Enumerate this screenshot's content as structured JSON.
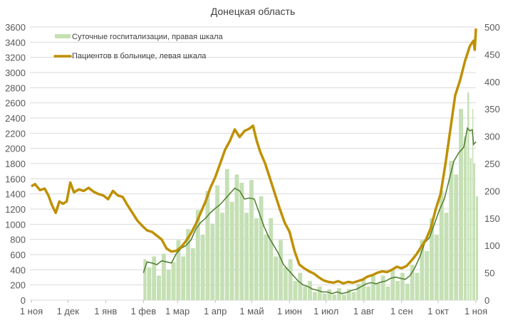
{
  "chart_data": {
    "type": "bar+line",
    "title": "Донецкая область",
    "x_tick_labels": [
      "1 ноя",
      "1 дек",
      "1 янв",
      "1 фев",
      "1 мар",
      "1 апр",
      "1 май",
      "1 июн",
      "1 июл",
      "1 авг",
      "1 сен",
      "1 окт",
      "1 ноя"
    ],
    "x_tick_dates": [
      "2020-11-01",
      "2020-12-01",
      "2021-01-01",
      "2021-02-01",
      "2021-03-01",
      "2021-04-01",
      "2021-05-01",
      "2021-06-01",
      "2021-07-01",
      "2021-08-01",
      "2021-09-01",
      "2021-10-01",
      "2021-11-01"
    ],
    "xlim": [
      "2020-11-01",
      "2021-11-01"
    ],
    "y_left": {
      "lim": [
        0,
        3600
      ],
      "ticks": [
        0,
        200,
        400,
        600,
        800,
        1000,
        1200,
        1400,
        1600,
        1800,
        2000,
        2200,
        2400,
        2600,
        2800,
        3000,
        3200,
        3400,
        3600
      ]
    },
    "y_right": {
      "lim": [
        0,
        500
      ],
      "ticks": [
        0,
        50,
        100,
        150,
        200,
        250,
        300,
        350,
        400,
        450,
        500
      ]
    },
    "grid": "horizontal",
    "legend_placement": "top-left",
    "colors": {
      "bars": "#c5e0b4",
      "patients": "#bf9000",
      "average": "#548235",
      "grid": "#d9d9d9"
    },
    "series": [
      {
        "name": "Суточные госпитализации, правая шкала",
        "kind": "bar",
        "axis": "right",
        "x": [
          "2021-02-01",
          "2021-02-04",
          "2021-02-08",
          "2021-02-12",
          "2021-02-16",
          "2021-02-20",
          "2021-02-24",
          "2021-02-28",
          "2021-03-04",
          "2021-03-08",
          "2021-03-12",
          "2021-03-16",
          "2021-03-20",
          "2021-03-24",
          "2021-03-28",
          "2021-04-01",
          "2021-04-05",
          "2021-04-09",
          "2021-04-13",
          "2021-04-17",
          "2021-04-21",
          "2021-04-25",
          "2021-04-29",
          "2021-05-03",
          "2021-05-07",
          "2021-05-11",
          "2021-05-15",
          "2021-05-19",
          "2021-05-23",
          "2021-05-27",
          "2021-05-31",
          "2021-06-04",
          "2021-06-08",
          "2021-06-12",
          "2021-06-16",
          "2021-06-20",
          "2021-06-24",
          "2021-06-28",
          "2021-07-02",
          "2021-07-06",
          "2021-07-10",
          "2021-07-14",
          "2021-07-18",
          "2021-07-22",
          "2021-07-26",
          "2021-07-30",
          "2021-08-03",
          "2021-08-07",
          "2021-08-11",
          "2021-08-15",
          "2021-08-19",
          "2021-08-23",
          "2021-08-27",
          "2021-08-31",
          "2021-09-04",
          "2021-09-08",
          "2021-09-12",
          "2021-09-16",
          "2021-09-20",
          "2021-09-24",
          "2021-09-28",
          "2021-10-02",
          "2021-10-06",
          "2021-10-10",
          "2021-10-14",
          "2021-10-18",
          "2021-10-22",
          "2021-10-25",
          "2021-10-27",
          "2021-10-29",
          "2021-10-30",
          "2021-11-01"
        ],
        "values": [
          75,
          60,
          80,
          45,
          85,
          55,
          70,
          110,
          80,
          130,
          95,
          165,
          120,
          200,
          140,
          210,
          160,
          240,
          180,
          230,
          215,
          160,
          220,
          150,
          190,
          120,
          150,
          80,
          110,
          60,
          75,
          35,
          50,
          25,
          35,
          15,
          25,
          12,
          20,
          10,
          22,
          10,
          20,
          15,
          30,
          40,
          25,
          45,
          30,
          45,
          25,
          55,
          35,
          50,
          30,
          65,
          50,
          110,
          90,
          150,
          120,
          200,
          160,
          255,
          230,
          350,
          300,
          380,
          260,
          350,
          250,
          190
        ]
      },
      {
        "name": "",
        "kind": "line",
        "axis": "right",
        "x": [
          "2021-02-01",
          "2021-02-04",
          "2021-02-08",
          "2021-02-12",
          "2021-02-16",
          "2021-02-20",
          "2021-02-24",
          "2021-02-28",
          "2021-03-04",
          "2021-03-08",
          "2021-03-12",
          "2021-03-16",
          "2021-03-20",
          "2021-03-24",
          "2021-03-28",
          "2021-04-01",
          "2021-04-05",
          "2021-04-09",
          "2021-04-13",
          "2021-04-17",
          "2021-04-21",
          "2021-04-25",
          "2021-04-29",
          "2021-05-03",
          "2021-05-07",
          "2021-05-11",
          "2021-05-15",
          "2021-05-19",
          "2021-05-23",
          "2021-05-27",
          "2021-05-31",
          "2021-06-04",
          "2021-06-08",
          "2021-06-12",
          "2021-06-16",
          "2021-06-20",
          "2021-06-24",
          "2021-06-28",
          "2021-07-02",
          "2021-07-06",
          "2021-07-10",
          "2021-07-14",
          "2021-07-18",
          "2021-07-22",
          "2021-07-26",
          "2021-07-30",
          "2021-08-03",
          "2021-08-07",
          "2021-08-11",
          "2021-08-15",
          "2021-08-19",
          "2021-08-23",
          "2021-08-27",
          "2021-08-31",
          "2021-09-04",
          "2021-09-08",
          "2021-09-12",
          "2021-09-16",
          "2021-09-20",
          "2021-09-24",
          "2021-09-28",
          "2021-10-02",
          "2021-10-06",
          "2021-10-10",
          "2021-10-14",
          "2021-10-18",
          "2021-10-22",
          "2021-10-25",
          "2021-10-27",
          "2021-10-29",
          "2021-10-30",
          "2021-11-01"
        ],
        "values": [
          50,
          70,
          68,
          65,
          72,
          70,
          68,
          85,
          95,
          100,
          110,
          130,
          142,
          150,
          160,
          168,
          175,
          185,
          195,
          205,
          200,
          185,
          187,
          185,
          160,
          135,
          115,
          100,
          85,
          65,
          55,
          45,
          35,
          28,
          25,
          20,
          18,
          15,
          15,
          12,
          15,
          12,
          14,
          18,
          20,
          25,
          30,
          32,
          30,
          33,
          35,
          40,
          42,
          40,
          38,
          45,
          60,
          80,
          105,
          115,
          140,
          165,
          185,
          220,
          255,
          270,
          280,
          315,
          310,
          312,
          285,
          290
        ]
      },
      {
        "name": "Пациентов в больнице, левая шкала",
        "kind": "line",
        "axis": "left",
        "x": [
          "2020-11-01",
          "2020-11-04",
          "2020-11-08",
          "2020-11-12",
          "2020-11-15",
          "2020-11-18",
          "2020-11-21",
          "2020-11-24",
          "2020-11-27",
          "2020-11-30",
          "2020-12-03",
          "2020-12-06",
          "2020-12-10",
          "2020-12-14",
          "2020-12-18",
          "2020-12-22",
          "2020-12-26",
          "2020-12-30",
          "2021-01-03",
          "2021-01-07",
          "2021-01-11",
          "2021-01-15",
          "2021-01-19",
          "2021-01-23",
          "2021-01-27",
          "2021-01-31",
          "2021-02-04",
          "2021-02-08",
          "2021-02-12",
          "2021-02-16",
          "2021-02-20",
          "2021-02-24",
          "2021-02-28",
          "2021-03-04",
          "2021-03-08",
          "2021-03-12",
          "2021-03-16",
          "2021-03-20",
          "2021-03-24",
          "2021-03-28",
          "2021-04-01",
          "2021-04-05",
          "2021-04-09",
          "2021-04-13",
          "2021-04-17",
          "2021-04-21",
          "2021-04-25",
          "2021-04-29",
          "2021-05-02",
          "2021-05-05",
          "2021-05-08",
          "2021-05-12",
          "2021-05-16",
          "2021-05-20",
          "2021-05-24",
          "2021-05-28",
          "2021-06-01",
          "2021-06-05",
          "2021-06-09",
          "2021-06-13",
          "2021-06-17",
          "2021-06-21",
          "2021-06-25",
          "2021-06-29",
          "2021-07-03",
          "2021-07-07",
          "2021-07-11",
          "2021-07-15",
          "2021-07-19",
          "2021-07-23",
          "2021-07-27",
          "2021-07-31",
          "2021-08-04",
          "2021-08-08",
          "2021-08-12",
          "2021-08-16",
          "2021-08-20",
          "2021-08-24",
          "2021-08-28",
          "2021-09-01",
          "2021-09-05",
          "2021-09-09",
          "2021-09-13",
          "2021-09-17",
          "2021-09-21",
          "2021-09-25",
          "2021-09-29",
          "2021-10-03",
          "2021-10-07",
          "2021-10-11",
          "2021-10-15",
          "2021-10-19",
          "2021-10-23",
          "2021-10-27",
          "2021-10-30",
          "2021-10-31",
          "2021-11-01"
        ],
        "values": [
          1500,
          1530,
          1450,
          1470,
          1380,
          1250,
          1150,
          1300,
          1270,
          1300,
          1550,
          1420,
          1460,
          1440,
          1480,
          1430,
          1400,
          1380,
          1330,
          1440,
          1380,
          1360,
          1250,
          1150,
          1050,
          980,
          920,
          900,
          850,
          800,
          680,
          640,
          650,
          700,
          780,
          880,
          1000,
          1150,
          1300,
          1480,
          1620,
          1800,
          1980,
          2100,
          2250,
          2150,
          2230,
          2260,
          2300,
          2100,
          1950,
          1800,
          1600,
          1400,
          1200,
          1020,
          900,
          650,
          470,
          420,
          380,
          350,
          300,
          260,
          240,
          230,
          250,
          220,
          240,
          230,
          250,
          270,
          310,
          330,
          360,
          380,
          370,
          400,
          440,
          420,
          450,
          520,
          600,
          700,
          800,
          950,
          1200,
          1400,
          1800,
          2250,
          2700,
          2900,
          3150,
          3350,
          3420,
          3300,
          3580
        ]
      }
    ]
  }
}
